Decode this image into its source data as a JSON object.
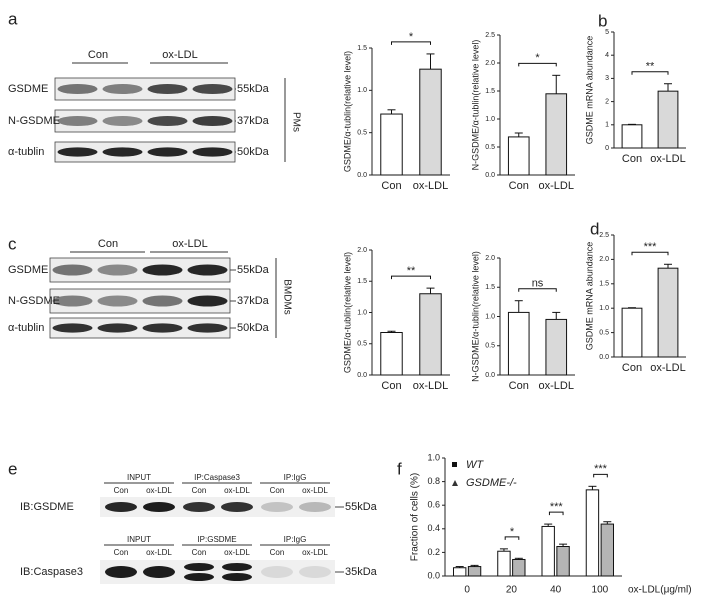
{
  "panels": [
    "a",
    "b",
    "c",
    "d",
    "e",
    "f"
  ],
  "blots": [
    {
      "groups": [
        "Con",
        "ox-LDL"
      ],
      "rows": [
        "GSDME",
        "N-GSDME",
        "α-tublin"
      ],
      "sizes": [
        "55kDa",
        "37kDa",
        "50kDa"
      ],
      "cell": "PMs"
    },
    {
      "groups": [
        "Con",
        "ox-LDL"
      ],
      "rows": [
        "GSDME",
        "N-GSDME",
        "α-tublin"
      ],
      "sizes": [
        "55kDa",
        "37kDa",
        "50kDa"
      ],
      "cell": "BMDMs"
    }
  ],
  "ip_blots": [
    {
      "headers": [
        "INPUT",
        "IP:Caspase3",
        "IP:IgG"
      ],
      "lanes": [
        "Con",
        "ox-LDL"
      ],
      "ib": "IB:GSDME",
      "size": "55kDa"
    },
    {
      "headers": [
        "INPUT",
        "IP:GSDME",
        "IP:IgG"
      ],
      "lanes": [
        "Con",
        "ox-LDL"
      ],
      "ib": "IB:Caspase3",
      "size": "35kDa"
    }
  ],
  "chart_data": [
    {
      "type": "bar",
      "y_label": "GSDME/α-tublin(relative level)",
      "categories": [
        "Con",
        "ox-LDL"
      ],
      "values": [
        0.72,
        1.25
      ],
      "errors": [
        0.05,
        0.18
      ],
      "colors": [
        "#ffffff",
        "#d9d9d9"
      ],
      "significance": "*",
      "ylim": [
        0,
        1.5
      ],
      "yticks": [
        {
          "value": 0,
          "label": "0.0"
        },
        0.5,
        {
          "value": 1,
          "label": "1.0"
        },
        1.5
      ]
    },
    {
      "type": "bar",
      "y_label": "N-GSDME/α-tublin(relative level)",
      "categories": [
        "Con",
        "ox-LDL"
      ],
      "values": [
        0.68,
        1.45
      ],
      "errors": [
        0.07,
        0.33
      ],
      "colors": [
        "#ffffff",
        "#d9d9d9"
      ],
      "significance": "*",
      "ylim": [
        0,
        2.5
      ],
      "yticks": [
        {
          "value": 0,
          "label": "0.0"
        },
        0.5,
        {
          "value": 1,
          "label": "1.0"
        },
        1.5,
        {
          "value": 2,
          "label": "2.0"
        },
        2.5
      ]
    },
    {
      "type": "bar",
      "y_label": "GSDME mRNA abundance",
      "categories": [
        "Con",
        "ox-LDL"
      ],
      "values": [
        1.0,
        2.45
      ],
      "errors": [
        0.02,
        0.32
      ],
      "colors": [
        "#ffffff",
        "#d9d9d9"
      ],
      "significance": "**",
      "ylim": [
        0,
        5
      ],
      "yticks": [
        0,
        1,
        2,
        3,
        4,
        5
      ]
    },
    {
      "type": "bar",
      "y_label": "GSDME/α-tublin(relative level)",
      "categories": [
        "Con",
        "ox-LDL"
      ],
      "values": [
        0.68,
        1.3
      ],
      "errors": [
        0.02,
        0.09
      ],
      "colors": [
        "#ffffff",
        "#d9d9d9"
      ],
      "significance": "**",
      "ylim": [
        0,
        2
      ],
      "yticks": [
        {
          "value": 0,
          "label": "0.0"
        },
        0.5,
        {
          "value": 1,
          "label": "1.0"
        },
        1.5,
        {
          "value": 2,
          "label": "2.0"
        }
      ]
    },
    {
      "type": "bar",
      "y_label": "N-GSDME/α-tublin(relative level)",
      "categories": [
        "Con",
        "ox-LDL"
      ],
      "values": [
        1.07,
        0.95
      ],
      "errors": [
        0.2,
        0.12
      ],
      "colors": [
        "#ffffff",
        "#d9d9d9"
      ],
      "significance": "ns",
      "ylim": [
        0,
        2
      ],
      "yticks": [
        {
          "value": 0,
          "label": "0.0"
        },
        0.5,
        {
          "value": 1,
          "label": "1.0"
        },
        1.5,
        {
          "value": 2,
          "label": "2.0"
        }
      ]
    },
    {
      "type": "bar",
      "y_label": "GSDME mRNA abundance",
      "categories": [
        "Con",
        "ox-LDL"
      ],
      "values": [
        1.0,
        1.82
      ],
      "errors": [
        0.01,
        0.08
      ],
      "colors": [
        "#ffffff",
        "#d9d9d9"
      ],
      "significance": "***",
      "ylim": [
        0,
        2.5
      ],
      "yticks": [
        {
          "value": 0,
          "label": "0.0"
        },
        0.5,
        {
          "value": 1,
          "label": "1.0"
        },
        1.5,
        {
          "value": 2,
          "label": "2.0"
        },
        2.5
      ]
    },
    {
      "type": "grouped_bar",
      "y_label": "Fraction of cells (%)",
      "x_label": "ox-LDL(μg/ml)",
      "categories": [
        "0",
        "20",
        "40",
        "100"
      ],
      "series": [
        {
          "name": "WT",
          "color": "#ffffff",
          "values": [
            0.07,
            0.21,
            0.42,
            0.73
          ],
          "errors": [
            0.01,
            0.02,
            0.02,
            0.03
          ]
        },
        {
          "name": "GSDME-/-",
          "color": "#b5b5b5",
          "values": [
            0.08,
            0.14,
            0.25,
            0.44
          ],
          "errors": [
            0.01,
            0.01,
            0.02,
            0.02
          ]
        }
      ],
      "significance": [
        null,
        "*",
        "***",
        "***"
      ],
      "ylim": [
        0,
        1
      ],
      "yticks": [
        {
          "value": 0,
          "label": "0.0"
        },
        0.2,
        0.4,
        0.6,
        0.8,
        {
          "value": 1,
          "label": "1.0"
        }
      ]
    }
  ]
}
